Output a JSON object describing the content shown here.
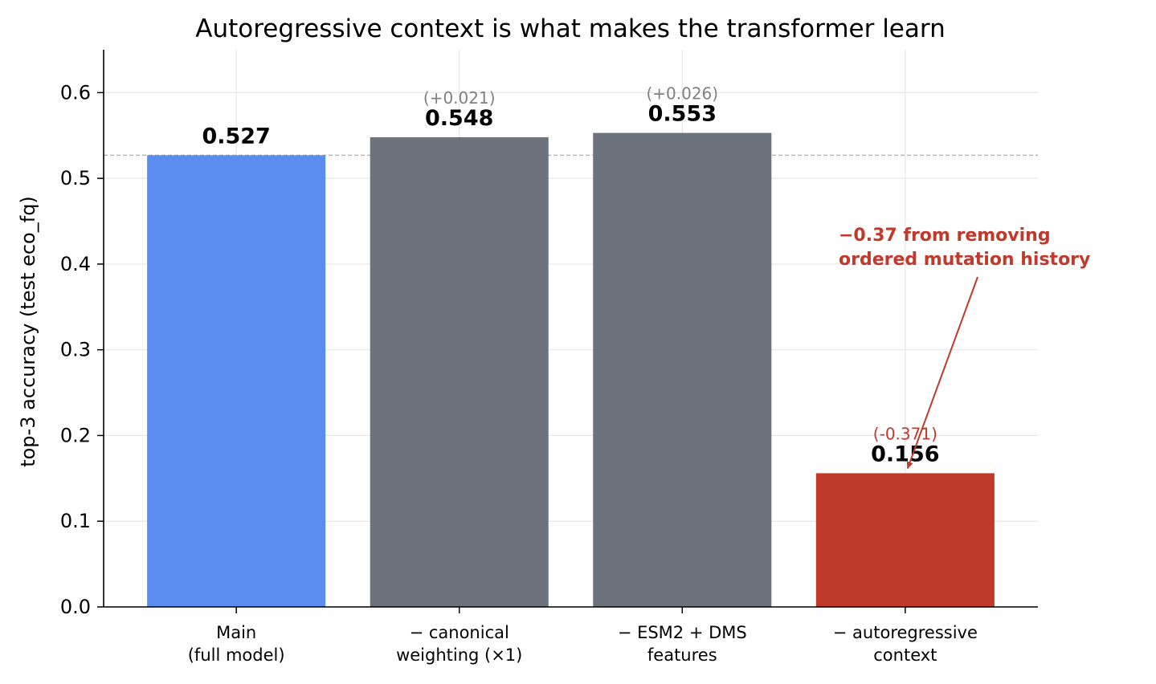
{
  "colors": {
    "main": "#5b8dee",
    "gray": "#6c737c",
    "red": "#c0392b",
    "delta_gray": "#808080",
    "grid": "#e6e6e6",
    "baseline": "#b3b3b3"
  },
  "chart_data": {
    "type": "bar",
    "title": "Autoregressive context is what makes the transformer learn",
    "ylabel": "top-3 accuracy (test eco_fq)",
    "xlabel": "",
    "ylim": [
      0,
      0.65
    ],
    "yticks": [
      "0.0",
      "0.1",
      "0.2",
      "0.3",
      "0.4",
      "0.5",
      "0.6"
    ],
    "ytick_values": [
      0,
      0.1,
      0.2,
      0.3,
      0.4,
      0.5,
      0.6
    ],
    "grid": true,
    "baseline": 0.527,
    "categories": [
      [
        "Main",
        "(full model)"
      ],
      [
        "− canonical",
        "weighting (×1)"
      ],
      [
        "− ESM2 + DMS",
        "features"
      ],
      [
        "− autoregressive",
        "context"
      ]
    ],
    "values": [
      0.527,
      0.548,
      0.553,
      0.156
    ],
    "value_labels": [
      "0.527",
      "0.548",
      "0.553",
      "0.156"
    ],
    "deltas": [
      "",
      "(+0.021)",
      "(+0.026)",
      "(-0.371)"
    ],
    "bar_colors": [
      "#5b8dee",
      "#6c737c",
      "#6c737c",
      "#c0392b"
    ],
    "delta_colors": [
      "#808080",
      "#808080",
      "#808080",
      "#c0392b"
    ],
    "annotation": {
      "lines": [
        "−0.37 from removing",
        "ordered mutation history"
      ],
      "color": "#c0392b",
      "target_category_index": 3
    }
  }
}
